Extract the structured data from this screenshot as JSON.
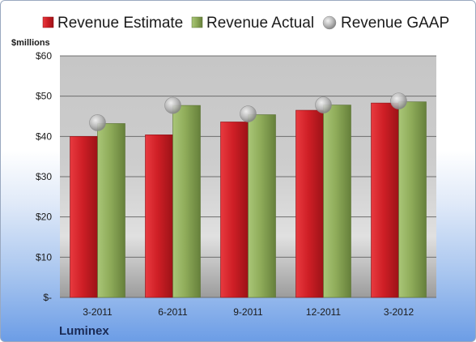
{
  "chart_data": {
    "type": "bar",
    "title": "",
    "xlabel": "",
    "ylabel": "$millions",
    "categories": [
      "3-2011",
      "6-2011",
      "9-2011",
      "12-2011",
      "3-2012"
    ],
    "series": [
      {
        "name": "Revenue Estimate",
        "kind": "bar",
        "values": [
          40.0,
          40.4,
          43.6,
          46.5,
          48.3
        ]
      },
      {
        "name": "Revenue Actual",
        "kind": "bar",
        "values": [
          43.2,
          47.7,
          45.4,
          47.8,
          48.6
        ]
      },
      {
        "name": "Revenue GAAP",
        "kind": "marker",
        "values": [
          43.4,
          47.7,
          45.6,
          47.8,
          48.8
        ]
      }
    ],
    "ylim": [
      0,
      60
    ],
    "yticks": [
      0,
      10,
      20,
      30,
      40,
      50,
      60
    ],
    "ytick_labels": [
      "$-",
      "$10",
      "$20",
      "$30",
      "$40",
      "$50",
      "$60"
    ],
    "grid": true,
    "legend_position": "top",
    "colors": {
      "estimate": "#cc2027",
      "actual": "#8fac5a",
      "gaap": "#b4b4b4"
    },
    "footer_label": "Luminex"
  }
}
